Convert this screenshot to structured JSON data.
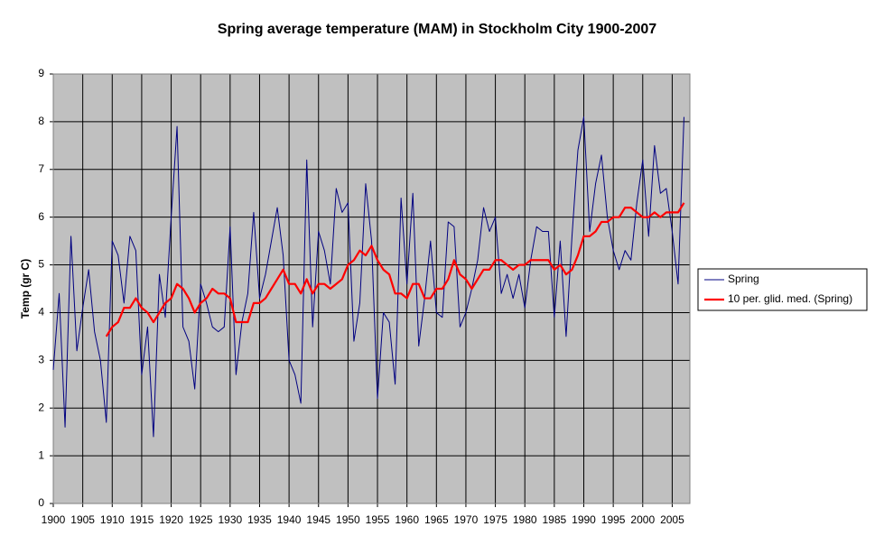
{
  "chart_data": {
    "type": "line",
    "title": "Spring average temperature (MAM) in Stockholm City 1900-2007",
    "y_label": "Temp (gr C)",
    "x": [
      1900,
      1901,
      1902,
      1903,
      1904,
      1905,
      1906,
      1907,
      1908,
      1909,
      1910,
      1911,
      1912,
      1913,
      1914,
      1915,
      1916,
      1917,
      1918,
      1919,
      1920,
      1921,
      1922,
      1923,
      1924,
      1925,
      1926,
      1927,
      1928,
      1929,
      1930,
      1931,
      1932,
      1933,
      1934,
      1935,
      1936,
      1937,
      1938,
      1939,
      1940,
      1941,
      1942,
      1943,
      1944,
      1945,
      1946,
      1947,
      1948,
      1949,
      1950,
      1951,
      1952,
      1953,
      1954,
      1955,
      1956,
      1957,
      1958,
      1959,
      1960,
      1961,
      1962,
      1963,
      1964,
      1965,
      1966,
      1967,
      1968,
      1969,
      1970,
      1971,
      1972,
      1973,
      1974,
      1975,
      1976,
      1977,
      1978,
      1979,
      1980,
      1981,
      1982,
      1983,
      1984,
      1985,
      1986,
      1987,
      1988,
      1989,
      1990,
      1991,
      1992,
      1993,
      1994,
      1995,
      1996,
      1997,
      1998,
      1999,
      2000,
      2001,
      2002,
      2003,
      2004,
      2005,
      2006,
      2007
    ],
    "series": [
      {
        "name": "Spring",
        "color": "#000080",
        "values": [
          2.8,
          4.4,
          1.6,
          5.6,
          3.2,
          4.1,
          4.9,
          3.6,
          3.0,
          1.7,
          5.5,
          5.2,
          4.2,
          5.6,
          5.3,
          2.7,
          3.7,
          1.4,
          4.8,
          3.9,
          6.0,
          7.9,
          3.7,
          3.4,
          2.4,
          4.6,
          4.2,
          3.7,
          3.6,
          3.7,
          5.8,
          2.7,
          3.8,
          4.4,
          6.1,
          4.3,
          4.8,
          5.5,
          6.2,
          5.2,
          3.0,
          2.7,
          2.1,
          7.2,
          3.7,
          5.7,
          5.3,
          4.6,
          6.6,
          6.1,
          6.3,
          3.4,
          4.2,
          6.7,
          5.5,
          2.2,
          4.0,
          3.8,
          2.5,
          6.4,
          4.6,
          6.5,
          3.3,
          4.3,
          5.5,
          4.0,
          3.9,
          5.9,
          5.8,
          3.7,
          4.0,
          4.5,
          5.1,
          6.2,
          5.7,
          6.0,
          4.4,
          4.8,
          4.3,
          4.8,
          4.1,
          5.1,
          5.8,
          5.7,
          5.7,
          3.9,
          5.5,
          3.5,
          5.6,
          7.4,
          8.1,
          5.7,
          6.7,
          7.3,
          6.0,
          5.3,
          4.9,
          5.3,
          5.1,
          6.3,
          7.2,
          5.6,
          7.5,
          6.5,
          6.6,
          5.7,
          4.6,
          8.1
        ]
      },
      {
        "name": "10 per. glid. med. (Spring)",
        "color": "#ff0000",
        "values": [
          null,
          null,
          null,
          null,
          null,
          null,
          null,
          null,
          null,
          3.5,
          3.7,
          3.8,
          4.1,
          4.1,
          4.3,
          4.1,
          4.0,
          3.8,
          4.0,
          4.2,
          4.3,
          4.6,
          4.5,
          4.3,
          4.0,
          4.2,
          4.3,
          4.5,
          4.4,
          4.4,
          4.3,
          3.8,
          3.8,
          3.8,
          4.2,
          4.2,
          4.3,
          4.5,
          4.7,
          4.9,
          4.6,
          4.6,
          4.4,
          4.7,
          4.4,
          4.6,
          4.6,
          4.5,
          4.6,
          4.7,
          5.0,
          5.1,
          5.3,
          5.2,
          5.4,
          5.1,
          4.9,
          4.8,
          4.4,
          4.4,
          4.3,
          4.6,
          4.6,
          4.3,
          4.3,
          4.5,
          4.5,
          4.7,
          5.1,
          4.8,
          4.7,
          4.5,
          4.7,
          4.9,
          4.9,
          5.1,
          5.1,
          5.0,
          4.9,
          5.0,
          5.0,
          5.1,
          5.1,
          5.1,
          5.1,
          4.9,
          5.0,
          4.8,
          4.9,
          5.2,
          5.6,
          5.6,
          5.7,
          5.9,
          5.9,
          6.0,
          6.0,
          6.2,
          6.2,
          6.1,
          6.0,
          6.0,
          6.1,
          6.0,
          6.1,
          6.1,
          6.1,
          6.3
        ]
      }
    ],
    "xlim": [
      1900,
      2008
    ],
    "xticks": [
      1900,
      1905,
      1910,
      1915,
      1920,
      1925,
      1930,
      1935,
      1940,
      1945,
      1950,
      1955,
      1960,
      1965,
      1970,
      1975,
      1980,
      1985,
      1990,
      1995,
      2000,
      2005
    ],
    "ylim": [
      0,
      9
    ],
    "yticks": [
      0,
      1,
      2,
      3,
      4,
      5,
      6,
      7,
      8,
      9
    ],
    "grid": true,
    "legend": "right"
  }
}
